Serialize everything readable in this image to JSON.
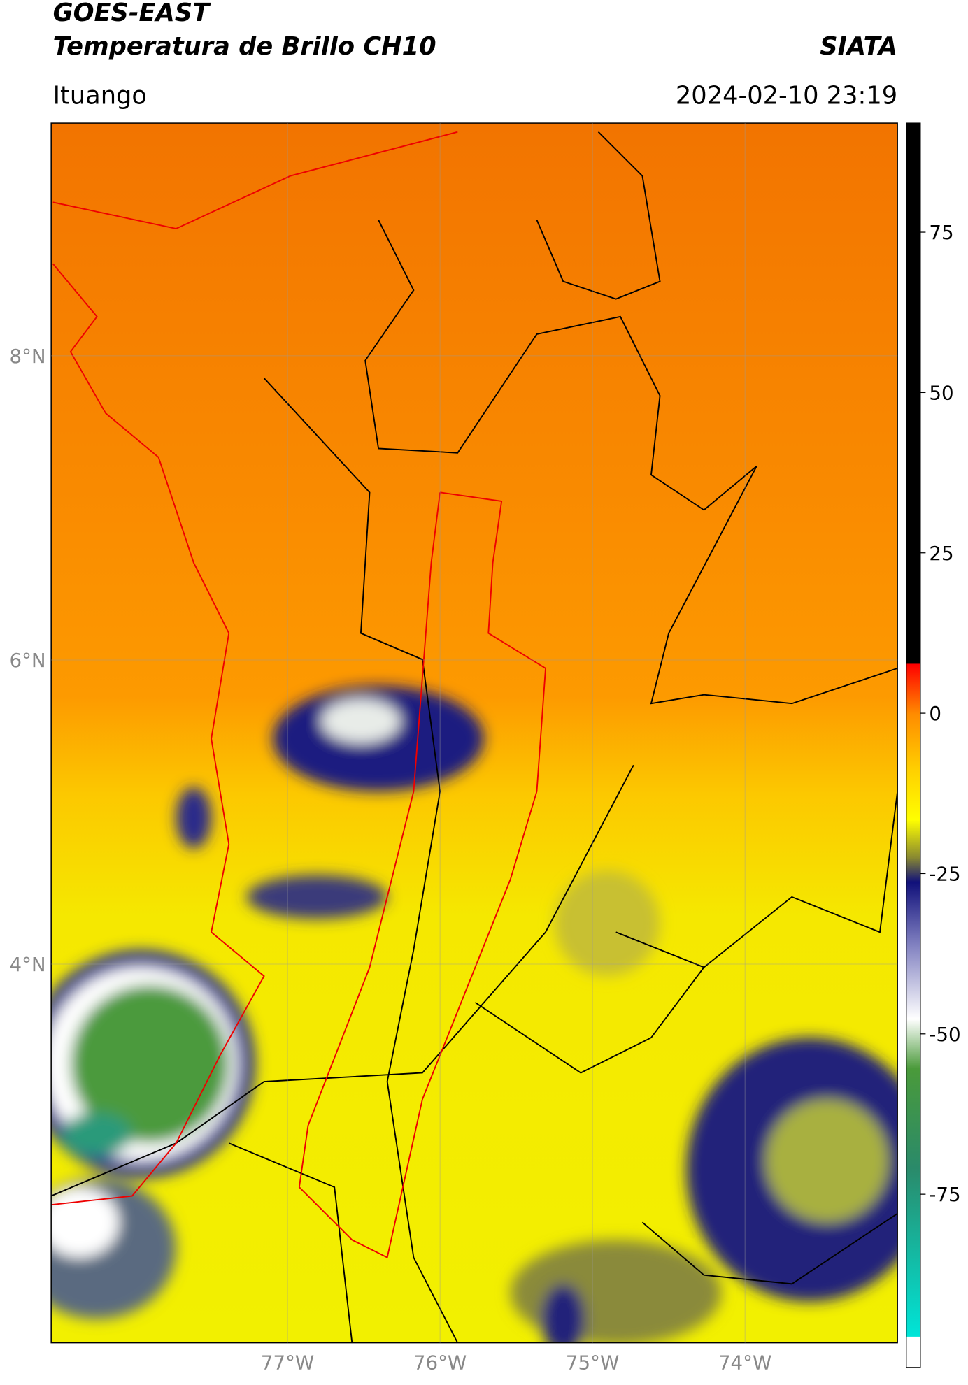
{
  "header": {
    "title": "GOES-EAST",
    "subtitle": "Temperatura de Brillo CH10",
    "source": "SIATA",
    "location": "Ituango",
    "datetime": "2024-02-10 23:19"
  },
  "map": {
    "xlim": [
      -78.55,
      -73.0
    ],
    "ylim": [
      1.51,
      9.53
    ],
    "grid": true,
    "xticks": [
      {
        "value": -77,
        "label": "77°W"
      },
      {
        "value": -76,
        "label": "76°W"
      },
      {
        "value": -75,
        "label": "75°W"
      },
      {
        "value": -74,
        "label": "74°W"
      }
    ],
    "yticks": [
      {
        "value": 8,
        "label": "8°N"
      },
      {
        "value": 6,
        "label": "6°N"
      },
      {
        "value": 4,
        "label": "4°N"
      }
    ]
  },
  "colorbar": {
    "lim": [
      -102,
      92
    ],
    "ticks": [
      -75,
      -50,
      -25,
      0,
      25,
      50,
      75
    ]
  }
}
